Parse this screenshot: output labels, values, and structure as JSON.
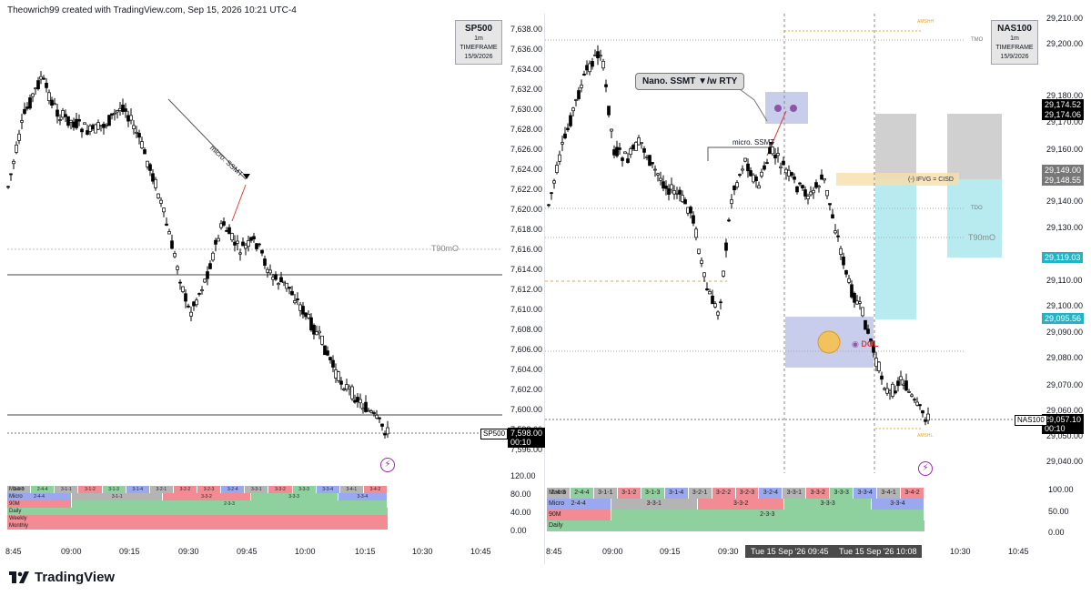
{
  "header": {
    "text": "Theowrich99 created with TradingView.com, Sep 15, 2026 10:21 UTC-4"
  },
  "footer": {
    "brand": "TradingView"
  },
  "left": {
    "symbol": "SP500",
    "timeframe": "1m TIMEFRAME",
    "date": "15/9/2026",
    "price_ticks": [
      "7,638.00",
      "7,636.00",
      "7,634.00",
      "7,632.00",
      "7,630.00",
      "7,628.00",
      "7,626.00",
      "7,624.00",
      "7,622.00",
      "7,620.00",
      "7,618.00",
      "7,616.00",
      "7,614.00",
      "7,612.00",
      "7,610.00",
      "7,608.00",
      "7,606.00",
      "7,604.00",
      "7,602.00",
      "7,600.00",
      "7,598.00",
      "7,596.00"
    ],
    "last_price": "7,598.00",
    "countdown": "00:10",
    "sub_ticks": [
      "120.00",
      "80.00",
      "40.00",
      "0.00"
    ],
    "time_ticks": [
      "8:45",
      "09:00",
      "09:15",
      "09:30",
      "09:45",
      "10:00",
      "10:15",
      "10:30",
      "10:45"
    ],
    "annotation_micro": "micro. SSMT",
    "annotation_t90": "T90mO",
    "rows": {
      "r1_label": "Macro",
      "r2_label": "Micro",
      "r3_label": "90M",
      "r4_label": "Daily",
      "r5_label": "Weekly",
      "r6_label": "Monthly",
      "r1_cells": [
        "2-4-3",
        "2-4-4",
        "3-1-1",
        "3-1-2",
        "3-1-3",
        "3-1-4",
        "3-2-1",
        "3-2-2",
        "3-2-3",
        "3-2-4",
        "3-3-1",
        "3-3-2",
        "3-3-3",
        "3-3-4",
        "3-4-1",
        "3-4-2"
      ],
      "r2_cells": [
        "2-4-4",
        "3-1-1",
        "3-3-2",
        "3-3-3",
        "3-3-4"
      ],
      "r3_cells": [
        "2-3-3"
      ]
    }
  },
  "right": {
    "symbol": "NAS100",
    "timeframe": "1m TIMEFRAME",
    "date": "15/9/2026",
    "price_ticks": [
      "29,210.00",
      "29,200.00",
      "29,180.00",
      "29,170.00",
      "29,160.00",
      "29,140.00",
      "29,130.00",
      "29,110.00",
      "29,100.00",
      "29,090.00",
      "29,080.00",
      "29,070.00",
      "29,060.00",
      "29,050.00",
      "29,040.00"
    ],
    "tags": {
      "t1": "29,174.52",
      "t2": "29,174.06",
      "t3": "29,149.00",
      "t4": "29,148.55",
      "t5": "29,119.03",
      "t6": "29,095.56",
      "last": "29,057.10",
      "countdown": "00:10"
    },
    "sub_ticks": [
      "100.00",
      "50.00",
      "0.00"
    ],
    "time_ticks": [
      "8:45",
      "09:00",
      "09:15",
      "09:30",
      "10:30",
      "10:45"
    ],
    "date_chip_1": "Tue 15 Sep '26   09:45",
    "date_chip_2": "Tue 15 Sep '26   10:08",
    "callout": "Nano. SSMT ▼/w RTY",
    "annotation_micro": "micro. SSMT",
    "annotation_ifvg": "(-) IFVG = CISD",
    "annotation_dol": "DOL",
    "annotation_tdo": "TDO",
    "annotation_t90": "T90mO",
    "annotation_amsh": "AMSHH",
    "annotation_amsl": "AMSHL",
    "annotation_tmo": "TMO",
    "rows": {
      "r1_label": "Macro",
      "r2_label": "Micro",
      "r3_label": "90M",
      "r4_label": "Daily",
      "r1_cells": [
        "2-4-3",
        "2-4-4",
        "3-1-1",
        "3-1-2",
        "3-1-3",
        "3-1-4",
        "3-2-1",
        "3-2-2",
        "3-2-3",
        "3-2-4",
        "3-3-1",
        "3-3-2",
        "3-3-3",
        "3-3-4",
        "3-4-1",
        "3-4-2"
      ],
      "r2_cells": [
        "2-4-4",
        "3-3-1",
        "3-3-2",
        "3-3-3",
        "3-3-4"
      ],
      "r3_cells": [
        "2-3-3"
      ]
    }
  },
  "colors": {
    "up": "#ffffff",
    "down": "#000000",
    "red_row": "#f28b94",
    "green_row": "#8fd19e",
    "gray_row": "#b4b4b4",
    "blue_row": "#9aa8f0",
    "cyan": "#a9e6ec",
    "lavender": "#c7cdea"
  }
}
